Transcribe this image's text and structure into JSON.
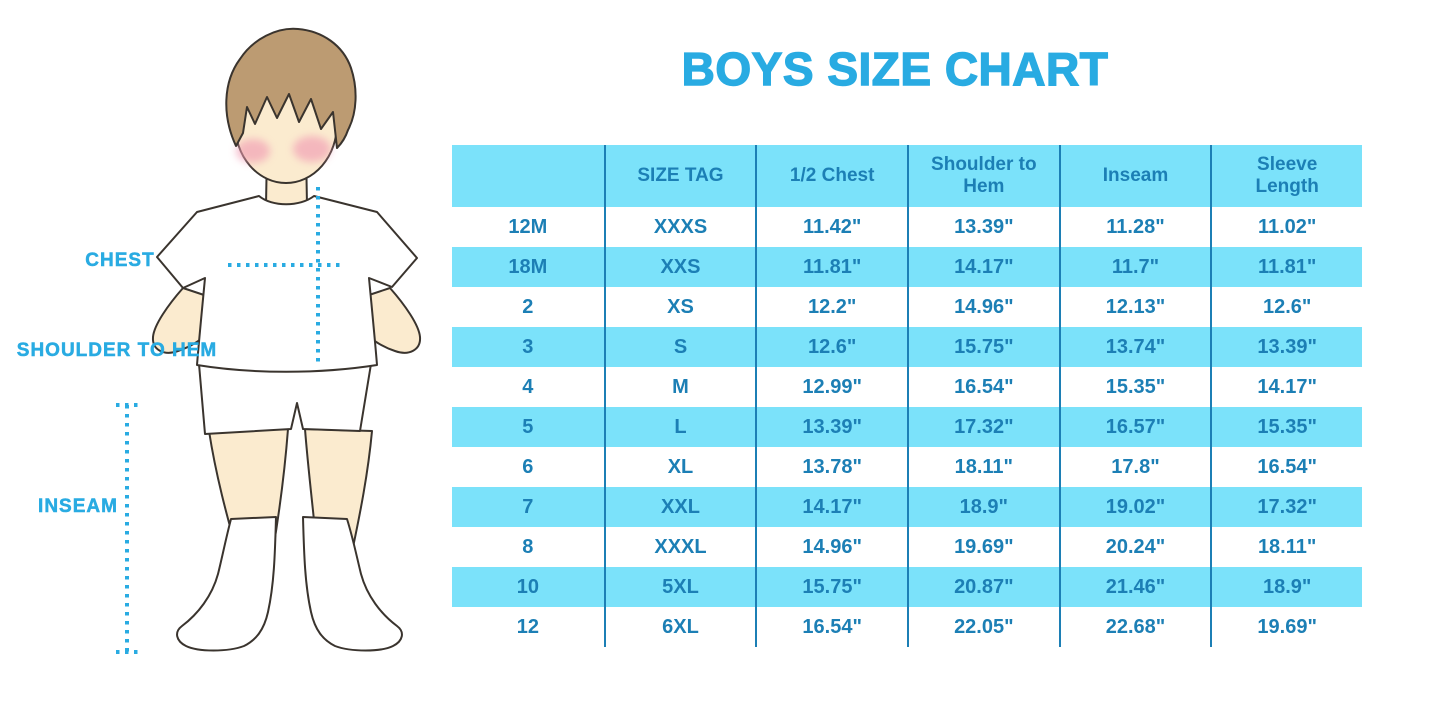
{
  "title": "BOYS SIZE CHART",
  "figure": {
    "labels": {
      "chest": "CHEST",
      "shoulder_to_hem": "SHOULDER TO HEM",
      "inseam": "INSEAM"
    }
  },
  "colors": {
    "accent_blue": "#29ABE2",
    "band_light_blue": "#7BE2FA",
    "table_text_blue": "#1C7FB5",
    "grid_line_blue": "#1C7FB5",
    "hair_brown": "#BC9B72",
    "skin": "#FBEBCF",
    "cheek_pink": "#F19CB4",
    "outline": "#3A342E"
  },
  "chart_data": {
    "type": "table",
    "title": "BOYS SIZE CHART",
    "units": "inches",
    "striping": "header and alternate rows light blue, starting with white data row",
    "columns": [
      "",
      "SIZE TAG",
      "1/2 Chest",
      "Shoulder to Hem",
      "Inseam",
      "Sleeve Length"
    ],
    "rows": [
      [
        "12M",
        "XXXS",
        "11.42\"",
        "13.39\"",
        "11.28\"",
        "11.02\""
      ],
      [
        "18M",
        "XXS",
        "11.81\"",
        "14.17\"",
        "11.7\"",
        "11.81\""
      ],
      [
        "2",
        "XS",
        "12.2\"",
        "14.96\"",
        "12.13\"",
        "12.6\""
      ],
      [
        "3",
        "S",
        "12.6\"",
        "15.75\"",
        "13.74\"",
        "13.39\""
      ],
      [
        "4",
        "M",
        "12.99\"",
        "16.54\"",
        "15.35\"",
        "14.17\""
      ],
      [
        "5",
        "L",
        "13.39\"",
        "17.32\"",
        "16.57\"",
        "15.35\""
      ],
      [
        "6",
        "XL",
        "13.78\"",
        "18.11\"",
        "17.8\"",
        "16.54\""
      ],
      [
        "7",
        "XXL",
        "14.17\"",
        "18.9\"",
        "19.02\"",
        "17.32\""
      ],
      [
        "8",
        "XXXL",
        "14.96\"",
        "19.69\"",
        "20.24\"",
        "18.11\""
      ],
      [
        "10",
        "5XL",
        "15.75\"",
        "20.87\"",
        "21.46\"",
        "18.9\""
      ],
      [
        "12",
        "6XL",
        "16.54\"",
        "22.05\"",
        "22.68\"",
        "19.69\""
      ]
    ]
  }
}
